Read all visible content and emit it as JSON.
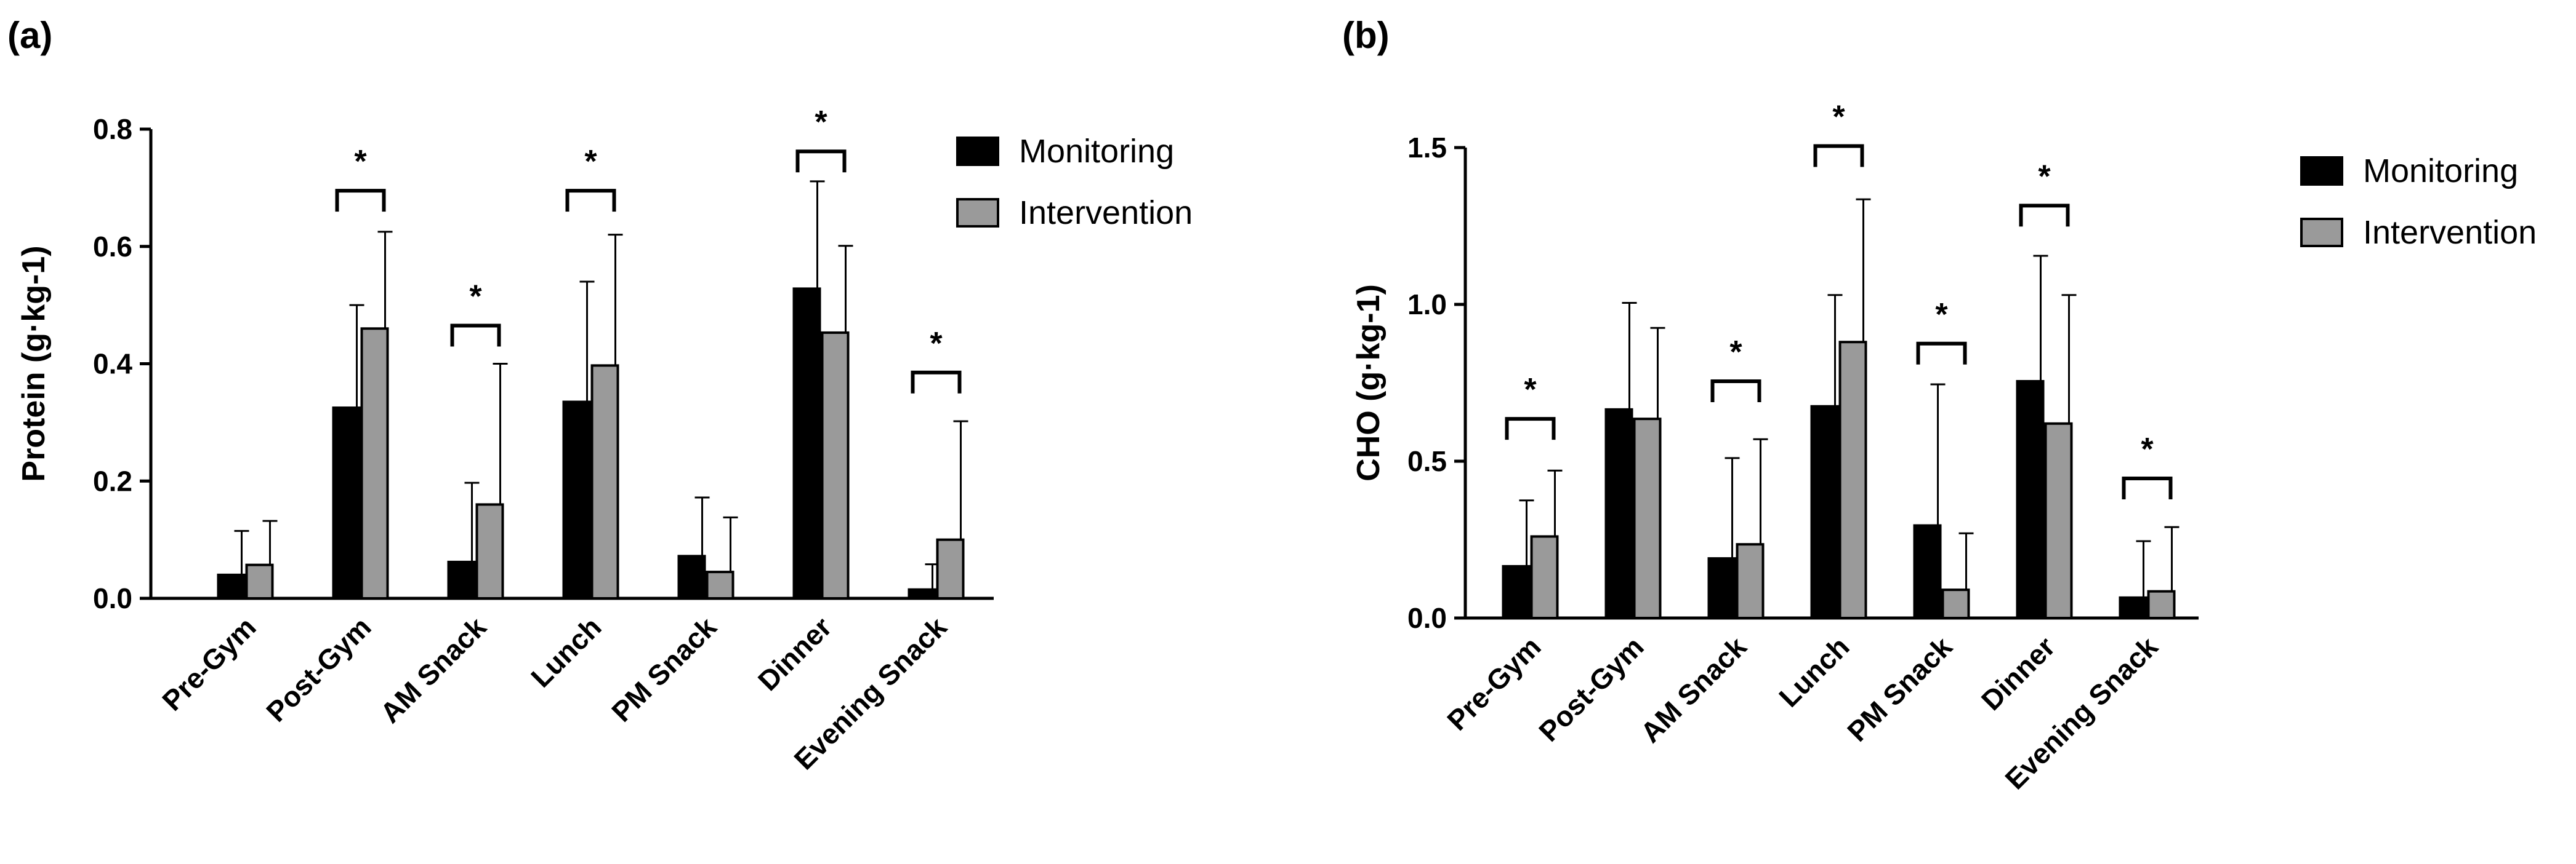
{
  "colors": {
    "monitoring": "#000000",
    "intervention": "#9a9a9a",
    "axis": "#000000"
  },
  "chart_data": [
    {
      "panel": "(a)",
      "type": "bar",
      "ylabel": "Protein (g·kg-1)",
      "ylim": [
        0,
        0.8
      ],
      "yticks": [
        "0.0",
        "0.2",
        "0.4",
        "0.6",
        "0.8"
      ],
      "ytick_values": [
        0,
        0.2,
        0.4,
        0.6,
        0.8
      ],
      "categories": [
        "Pre-Gym",
        "Post-Gym",
        "AM Snack",
        "Lunch",
        "PM Snack",
        "Dinner",
        "Evening Snack"
      ],
      "legend": [
        "Monitoring",
        "Intervention"
      ],
      "series": [
        {
          "name": "Monitoring",
          "values": [
            0.04,
            0.325,
            0.062,
            0.335,
            0.072,
            0.528,
            0.015
          ],
          "errors": [
            0.075,
            0.175,
            0.135,
            0.205,
            0.1,
            0.183,
            0.043
          ]
        },
        {
          "name": "Intervention",
          "values": [
            0.057,
            0.46,
            0.16,
            0.397,
            0.045,
            0.453,
            0.1
          ],
          "errors": [
            0.075,
            0.165,
            0.24,
            0.223,
            0.093,
            0.148,
            0.202
          ]
        }
      ],
      "significance": [
        {
          "category": "Post-Gym",
          "label": "*",
          "level": 0.695
        },
        {
          "category": "AM Snack",
          "label": "*",
          "level": 0.465
        },
        {
          "category": "Lunch",
          "label": "*",
          "level": 0.695
        },
        {
          "category": "Dinner",
          "label": "*",
          "level": 0.762
        },
        {
          "category": "Evening Snack",
          "label": "*",
          "level": 0.385
        }
      ]
    },
    {
      "panel": "(b)",
      "type": "bar",
      "ylabel": "CHO (g·kg-1)",
      "ylim": [
        0,
        1.5
      ],
      "yticks": [
        "0.0",
        "0.5",
        "1.0",
        "1.5"
      ],
      "ytick_values": [
        0,
        0.5,
        1.0,
        1.5
      ],
      "categories": [
        "Pre-Gym",
        "Post-Gym",
        "AM Snack",
        "Lunch",
        "PM Snack",
        "Dinner",
        "Evening Snack"
      ],
      "legend": [
        "Monitoring",
        "Intervention"
      ],
      "series": [
        {
          "name": "Monitoring",
          "values": [
            0.165,
            0.665,
            0.19,
            0.675,
            0.295,
            0.755,
            0.065
          ],
          "errors": [
            0.21,
            0.34,
            0.32,
            0.355,
            0.45,
            0.4,
            0.18
          ]
        },
        {
          "name": "Intervention",
          "values": [
            0.26,
            0.635,
            0.235,
            0.88,
            0.09,
            0.62,
            0.085
          ],
          "errors": [
            0.21,
            0.29,
            0.335,
            0.455,
            0.18,
            0.41,
            0.205
          ]
        }
      ],
      "significance": [
        {
          "category": "Pre-Gym",
          "label": "*",
          "level": 0.635
        },
        {
          "category": "AM Snack",
          "label": "*",
          "level": 0.755
        },
        {
          "category": "Lunch",
          "label": "*",
          "level": 1.505
        },
        {
          "category": "PM Snack",
          "label": "*",
          "level": 0.875
        },
        {
          "category": "Dinner",
          "label": "*",
          "level": 1.315
        },
        {
          "category": "Evening Snack",
          "label": "*",
          "level": 0.445
        }
      ]
    }
  ]
}
